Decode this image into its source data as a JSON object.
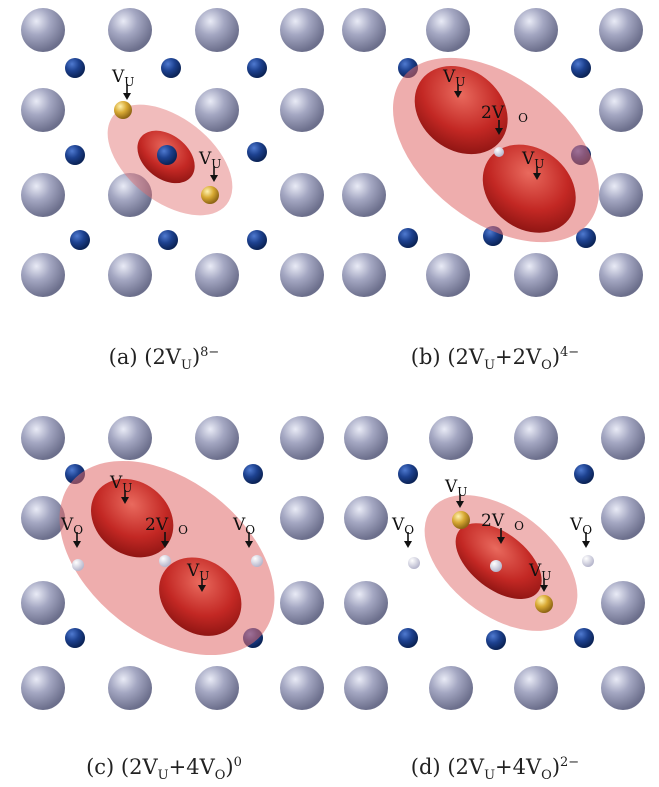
{
  "figure": {
    "panels": [
      {
        "id": "a",
        "caption_letter": "(a)",
        "caption_main": "(2V",
        "caption_sub1": "U",
        "caption_close": ")",
        "caption_sup": "8−",
        "labels": [
          {
            "base": "V",
            "sub": "U"
          },
          {
            "base": "V",
            "sub": "U"
          }
        ]
      },
      {
        "id": "b",
        "caption_letter": "(b)",
        "caption_main": "(2V",
        "caption_sub1": "U",
        "caption_mid": "+2V",
        "caption_sub2": "O",
        "caption_close": ")",
        "caption_sup": "4−",
        "labels": [
          {
            "base": "V",
            "sub": "U"
          },
          {
            "base": "2V",
            "sub": "O"
          },
          {
            "base": "V",
            "sub": "U"
          }
        ]
      },
      {
        "id": "c",
        "caption_letter": "(c)",
        "caption_main": "(2V",
        "caption_sub1": "U",
        "caption_mid": "+4V",
        "caption_sub2": "O",
        "caption_close": ")",
        "caption_sup": "0",
        "labels": [
          {
            "base": "V",
            "sub": "U"
          },
          {
            "base": "V",
            "sub": "O"
          },
          {
            "base": "2V",
            "sub": "O"
          },
          {
            "base": "V",
            "sub": "O"
          },
          {
            "base": "V",
            "sub": "U"
          }
        ]
      },
      {
        "id": "d",
        "caption_letter": "(d)",
        "caption_main": "(2V",
        "caption_sub1": "U",
        "caption_mid": "+4V",
        "caption_sub2": "O",
        "caption_close": ")",
        "caption_sup": "2−",
        "labels": [
          {
            "base": "V",
            "sub": "U"
          },
          {
            "base": "V",
            "sub": "O"
          },
          {
            "base": "2V",
            "sub": "O"
          },
          {
            "base": "V",
            "sub": "O"
          },
          {
            "base": "V",
            "sub": "U"
          }
        ]
      }
    ],
    "colors": {
      "uranium_atom": "#9a9db8",
      "oxygen_atom": "#1a3f8f",
      "uranium_vacancy": "#d4a32a",
      "oxygen_vacancy": "#e8e8f4",
      "isosurface_outer": "#e06a6a",
      "isosurface_inner": "#c0201e"
    }
  }
}
